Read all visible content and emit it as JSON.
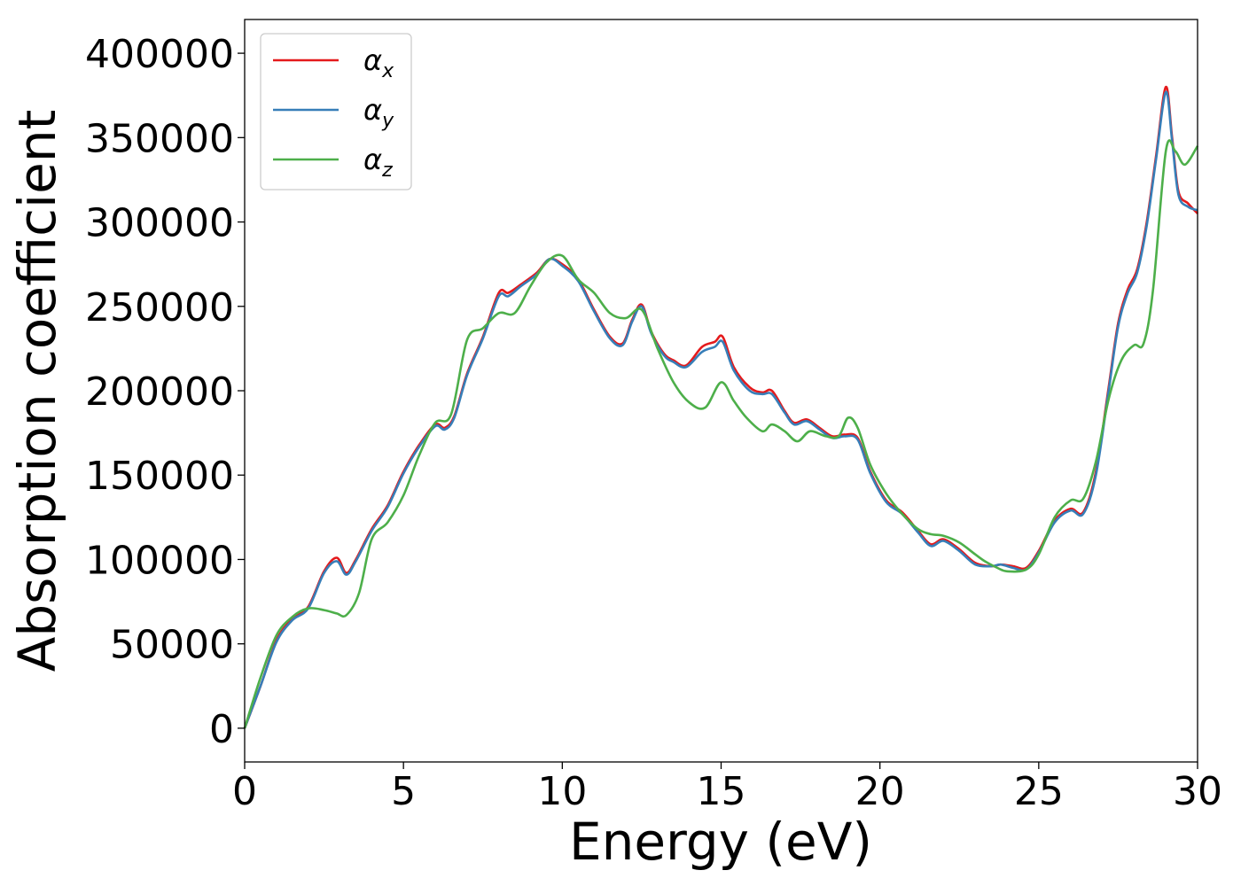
{
  "chart_data": {
    "type": "line",
    "xlabel": "Energy (eV)",
    "ylabel": "Absorption coefficient",
    "xlim": [
      0,
      30
    ],
    "ylim": [
      -20000,
      420000
    ],
    "xticks": [
      0,
      5,
      10,
      15,
      20,
      25,
      30
    ],
    "yticks": [
      0,
      50000,
      100000,
      150000,
      200000,
      250000,
      300000,
      350000,
      400000
    ],
    "grid": false,
    "legend_position": "top-left",
    "series": [
      {
        "name": "α_x",
        "legend_symbol": "α",
        "legend_sub": "x",
        "color": "#e41a1c",
        "x": [
          0,
          0.5,
          1,
          1.5,
          2,
          2.5,
          2.9,
          3.2,
          3.5,
          4,
          4.5,
          5,
          5.5,
          6,
          6.3,
          6.6,
          7,
          7.5,
          8,
          8.3,
          8.7,
          9.2,
          9.6,
          10,
          10.5,
          11,
          11.5,
          11.9,
          12.2,
          12.5,
          12.8,
          13.2,
          13.5,
          13.9,
          14.4,
          14.8,
          15.05,
          15.4,
          15.9,
          16.3,
          16.6,
          17,
          17.3,
          17.7,
          18.1,
          18.5,
          18.9,
          19.3,
          19.7,
          20.2,
          20.7,
          21.2,
          21.6,
          22,
          22.5,
          23,
          23.5,
          23.8,
          24.2,
          24.6,
          25,
          25.5,
          26,
          26.4,
          26.8,
          27.2,
          27.5,
          27.8,
          28.1,
          28.4,
          28.7,
          29,
          29.2,
          29.4,
          29.7,
          30
        ],
        "y": [
          0,
          25000,
          52000,
          65000,
          72000,
          93000,
          101000,
          92000,
          100000,
          118000,
          132000,
          152000,
          168000,
          180000,
          178000,
          185000,
          210000,
          232000,
          258000,
          258000,
          263000,
          270000,
          278000,
          275000,
          266000,
          248000,
          232000,
          228000,
          242000,
          251000,
          235000,
          222000,
          218000,
          215000,
          226000,
          229000,
          232000,
          214000,
          202000,
          199000,
          200000,
          188000,
          181000,
          183000,
          178000,
          173000,
          174000,
          172000,
          152000,
          135000,
          128000,
          117000,
          109000,
          112000,
          106000,
          98000,
          96000,
          97000,
          96000,
          95000,
          105000,
          123000,
          130000,
          128000,
          152000,
          202000,
          240000,
          260000,
          272000,
          300000,
          340000,
          380000,
          350000,
          318000,
          311000,
          305000
        ]
      },
      {
        "name": "α_y",
        "legend_symbol": "α",
        "legend_sub": "y",
        "color": "#377eb8",
        "x": [
          0,
          0.5,
          1,
          1.5,
          2,
          2.5,
          2.9,
          3.2,
          3.5,
          4,
          4.5,
          5,
          5.5,
          6,
          6.3,
          6.6,
          7,
          7.5,
          8,
          8.3,
          8.7,
          9.2,
          9.6,
          10,
          10.5,
          11,
          11.5,
          11.9,
          12.2,
          12.5,
          12.8,
          13.2,
          13.5,
          13.9,
          14.4,
          14.8,
          15.05,
          15.4,
          15.9,
          16.3,
          16.6,
          17,
          17.3,
          17.7,
          18.1,
          18.5,
          18.9,
          19.3,
          19.7,
          20.2,
          20.7,
          21.2,
          21.6,
          22,
          22.5,
          23,
          23.5,
          23.8,
          24.2,
          24.6,
          25,
          25.5,
          26,
          26.4,
          26.8,
          27.2,
          27.5,
          27.8,
          28.1,
          28.4,
          28.7,
          29,
          29.2,
          29.4,
          29.7,
          30
        ],
        "y": [
          0,
          25000,
          51000,
          64000,
          71000,
          92000,
          99000,
          91000,
          99000,
          117000,
          131000,
          151000,
          167000,
          179000,
          177000,
          184000,
          209000,
          231000,
          256000,
          256000,
          262000,
          269000,
          278000,
          274000,
          265000,
          247000,
          231000,
          227000,
          241000,
          250000,
          234000,
          221000,
          217000,
          214000,
          223000,
          226000,
          229000,
          212000,
          200000,
          198000,
          198000,
          187000,
          180000,
          182000,
          177000,
          172000,
          173000,
          171000,
          151000,
          134000,
          127000,
          116000,
          108000,
          111000,
          105000,
          97000,
          96000,
          97000,
          95000,
          94000,
          104000,
          122000,
          129000,
          127000,
          150000,
          200000,
          238000,
          258000,
          270000,
          298000,
          338000,
          377000,
          348000,
          316000,
          309000,
          307000
        ]
      },
      {
        "name": "α_z",
        "legend_symbol": "α",
        "legend_sub": "z",
        "color": "#4daf4a",
        "x": [
          0,
          0.5,
          1,
          1.5,
          2,
          2.5,
          2.9,
          3.2,
          3.6,
          4,
          4.5,
          5,
          5.5,
          6,
          6.5,
          7,
          7.5,
          8,
          8.5,
          9,
          9.5,
          10,
          10.5,
          11,
          11.5,
          12,
          12.5,
          13,
          13.5,
          14,
          14.5,
          15,
          15.4,
          15.8,
          16.3,
          16.6,
          17,
          17.4,
          17.8,
          18.3,
          18.7,
          19,
          19.3,
          19.7,
          20.2,
          20.7,
          21.2,
          21.6,
          22,
          22.5,
          23,
          23.3,
          23.7,
          24,
          24.6,
          25,
          25.5,
          26,
          26.4,
          26.8,
          27.2,
          27.6,
          28,
          28.3,
          28.6,
          29,
          29.3,
          29.6,
          30
        ],
        "y": [
          0,
          30000,
          55000,
          66000,
          71000,
          70000,
          68000,
          67000,
          80000,
          112000,
          122000,
          138000,
          162000,
          181000,
          186000,
          230000,
          237000,
          246000,
          246000,
          262000,
          276000,
          280000,
          266000,
          258000,
          246000,
          243000,
          248000,
          225000,
          205000,
          193000,
          190000,
          205000,
          194000,
          184000,
          176000,
          180000,
          176000,
          170000,
          176000,
          173000,
          173000,
          184000,
          178000,
          156000,
          139000,
          127000,
          118000,
          115000,
          114000,
          110000,
          103000,
          99000,
          95000,
          93000,
          94000,
          103000,
          125000,
          135000,
          136000,
          158000,
          195000,
          218000,
          227000,
          228000,
          260000,
          342000,
          342000,
          334000,
          345000
        ]
      }
    ]
  }
}
